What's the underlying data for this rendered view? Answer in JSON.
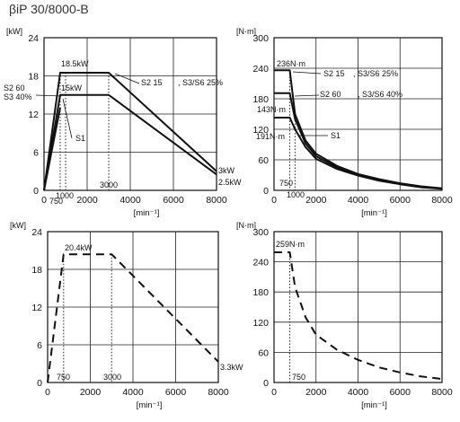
{
  "title": "βiP 30/8000-B",
  "chart_data": [
    {
      "type": "line",
      "xlabel": "[min⁻¹]",
      "ylabel": "[kW]",
      "xlim": [
        0,
        8000
      ],
      "ylim": [
        0,
        24
      ],
      "xticks": [
        "0",
        "2000",
        "4000",
        "6000",
        "8000"
      ],
      "yticks": [
        "0",
        "6",
        "12",
        "18",
        "24"
      ],
      "grid": true,
      "series": [
        {
          "name": "S2 15 , S3/S6 25%",
          "style": "solid",
          "x": [
            0,
            750,
            3000,
            8000
          ],
          "y": [
            0,
            18.5,
            18.5,
            3
          ]
        },
        {
          "name": "S2 60 , S3 40%",
          "style": "solid",
          "x": [
            0,
            750,
            3000,
            8000
          ],
          "y": [
            0,
            15,
            15,
            2.5
          ]
        },
        {
          "name": "S1",
          "style": "solid",
          "x": [
            0,
            750
          ],
          "y": [
            0,
            13
          ]
        }
      ],
      "annotations": [
        "18.5kW",
        "15kW",
        "S2 60",
        "S3 40%",
        "S2 15",
        ", S3/S6 25%",
        "S1",
        "3kW",
        "2.5kW",
        "750",
        "1000",
        "3000"
      ]
    },
    {
      "type": "line",
      "xlabel": "[min⁻¹]",
      "ylabel": "[N·m]",
      "xlim": [
        0,
        8000
      ],
      "ylim": [
        0,
        300
      ],
      "xticks": [
        "0",
        "2000",
        "4000",
        "6000",
        "8000"
      ],
      "yticks": [
        "0",
        "60",
        "120",
        "180",
        "240",
        "300"
      ],
      "grid": true,
      "series": [
        {
          "name": "S2 15 , S3/S6 25%",
          "style": "solid",
          "x": [
            0,
            750,
            1000,
            1500,
            2000,
            3000,
            4000,
            5000,
            6000,
            7000,
            8000
          ],
          "y": [
            236,
            236,
            150,
            98,
            72,
            48,
            32,
            22,
            14,
            8,
            4
          ]
        },
        {
          "name": "S2 60 , S3/S6 40%",
          "style": "solid",
          "x": [
            0,
            750,
            1000,
            1500,
            2000,
            3000,
            4000,
            5000,
            6000,
            7000,
            8000
          ],
          "y": [
            191,
            191,
            140,
            92,
            67,
            45,
            30,
            20,
            13,
            7,
            3
          ]
        },
        {
          "name": "S1",
          "style": "solid",
          "x": [
            0,
            750,
            1000,
            1500,
            2000,
            3000,
            4000,
            5000,
            6000,
            7000,
            8000
          ],
          "y": [
            143,
            143,
            120,
            85,
            62,
            42,
            29,
            19,
            12,
            6,
            3
          ]
        }
      ],
      "annotations": [
        "236N·m",
        "191N·m",
        "143N·m",
        "S2 15",
        ", S3/S6 25%",
        "S2 60",
        ", S3/S6 40%",
        "S1",
        "750",
        "1000"
      ]
    },
    {
      "type": "line",
      "xlabel": "[min⁻¹]",
      "ylabel": "[kW]",
      "xlim": [
        0,
        8000
      ],
      "ylim": [
        0,
        24
      ],
      "xticks": [
        "0",
        "2000",
        "4000",
        "6000",
        "8000"
      ],
      "yticks": [
        "0",
        "6",
        "12",
        "18",
        "24"
      ],
      "grid": true,
      "series": [
        {
          "style": "dashed",
          "x": [
            0,
            750,
            3000,
            8000
          ],
          "y": [
            0,
            20.4,
            20.4,
            3.3
          ]
        }
      ],
      "annotations": [
        "20.4kW",
        "3.3kW",
        "750",
        "3000"
      ]
    },
    {
      "type": "line",
      "xlabel": "[min⁻¹]",
      "ylabel": "[N·m]",
      "xlim": [
        0,
        8000
      ],
      "ylim": [
        0,
        300
      ],
      "xticks": [
        "0",
        "2000",
        "4000",
        "6000",
        "8000"
      ],
      "yticks": [
        "0",
        "60",
        "120",
        "180",
        "240",
        "300"
      ],
      "grid": true,
      "series": [
        {
          "style": "dashed",
          "x": [
            0,
            750,
            1000,
            1500,
            2000,
            3000,
            4000,
            5000,
            6000,
            7000,
            8000
          ],
          "y": [
            259,
            259,
            190,
            130,
            95,
            65,
            45,
            30,
            20,
            12,
            7
          ]
        }
      ],
      "annotations": [
        "259N·m",
        "750"
      ]
    }
  ]
}
